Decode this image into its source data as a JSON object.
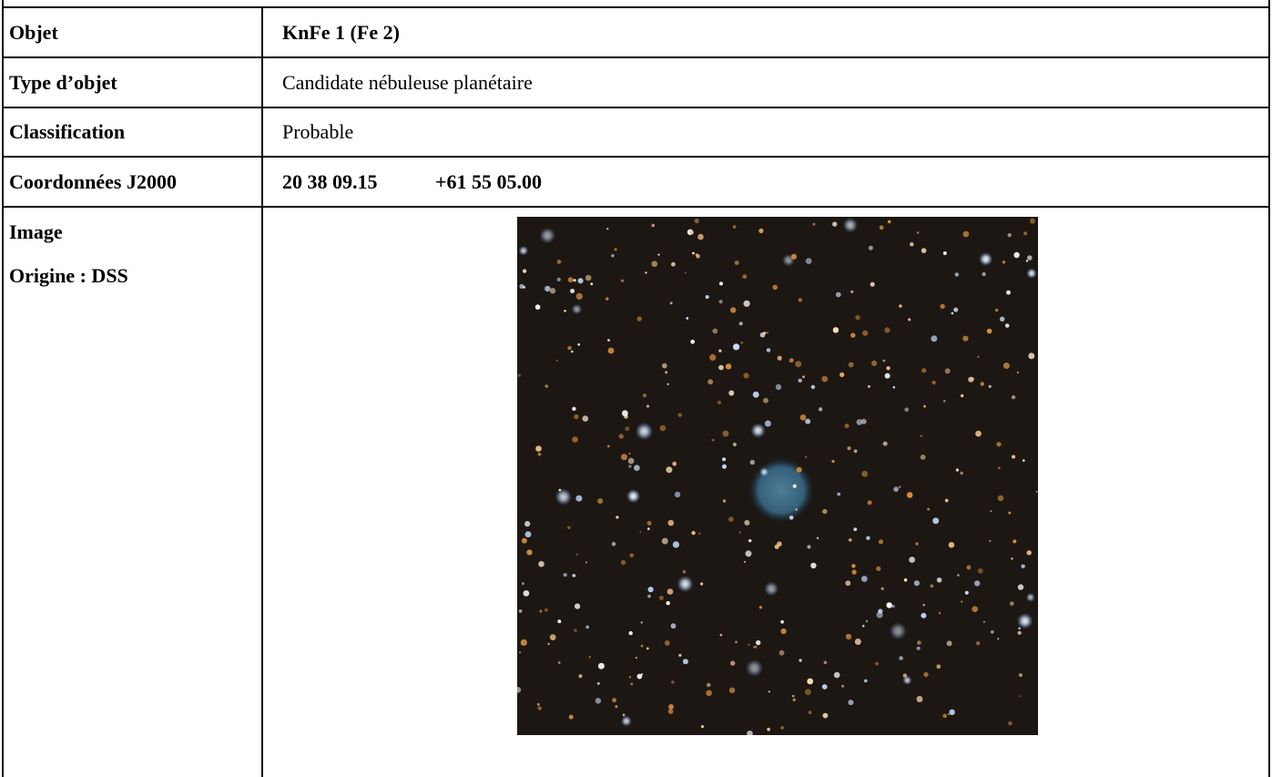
{
  "table": {
    "rows": [
      {
        "label": "Objet",
        "value": "KnFe 1 (Fe 2)"
      },
      {
        "label": "Type d’objet",
        "value": "Candidate nébuleuse planétaire"
      },
      {
        "label": "Classification",
        "value": "Probable"
      },
      {
        "label": "Coordonnées J2000",
        "ra": "20 38 09.15",
        "dec": "+61 55 05.00"
      }
    ],
    "image_row": {
      "label": "Image",
      "origin": "Origine : DSS"
    }
  }
}
